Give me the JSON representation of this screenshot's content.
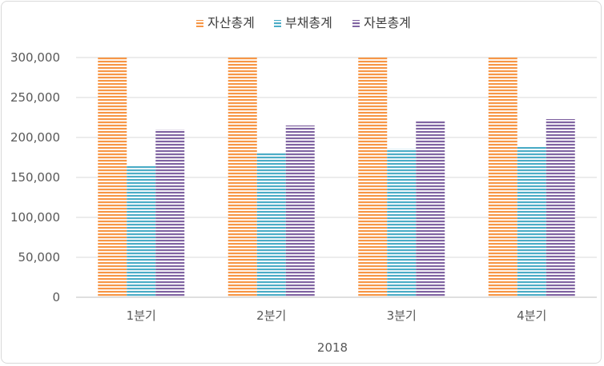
{
  "chart_data": {
    "type": "bar",
    "group_label": "2018",
    "categories": [
      "1분기",
      "2분기",
      "3분기",
      "4분기"
    ],
    "series": [
      {
        "name": "자산총계",
        "color": "#f79646",
        "values": [
          300000,
          300000,
          300000,
          300000
        ]
      },
      {
        "name": "부채총계",
        "color": "#4bacc6",
        "values": [
          165000,
          181000,
          186000,
          189000
        ]
      },
      {
        "name": "자본총계",
        "color": "#8064a2",
        "values": [
          210000,
          215000,
          220000,
          223000
        ]
      }
    ],
    "ylim": [
      0,
      300000
    ],
    "yticks": [
      0,
      50000,
      100000,
      150000,
      200000,
      250000,
      300000
    ],
    "ytick_labels": [
      "0",
      "50,000",
      "100,000",
      "150,000",
      "200,000",
      "250,000",
      "300,000"
    ],
    "grid": true,
    "legend": "top-center",
    "pattern": "horizontal-stripes"
  }
}
